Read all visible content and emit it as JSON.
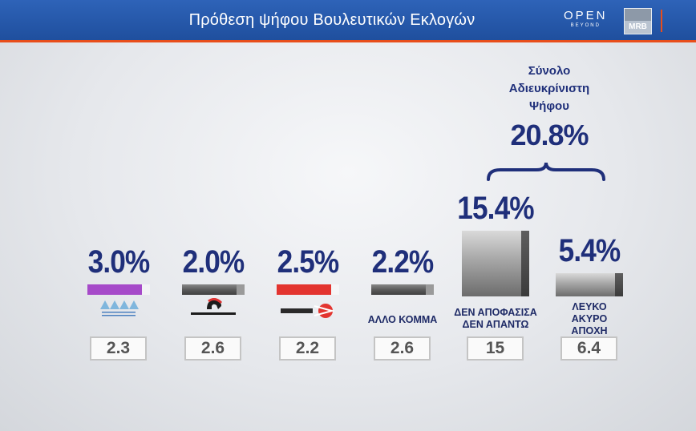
{
  "header": {
    "title": "Πρόθεση ψήφου Βουλευτικών Εκλογών",
    "open_logo": "OPEN",
    "open_sub": "BEYOND",
    "mrb_logo": "MRB"
  },
  "colors": {
    "header_blue": "#2a5cae",
    "accent_orange": "#e84e1b",
    "value_text": "#1f2f7a",
    "plefsi_purple": "#a64ac9",
    "mera25_red": "#e3342f"
  },
  "total": {
    "label_lines": [
      "Σύνολο",
      "Αδιευκρίνιστη",
      "Ψήφου"
    ],
    "value": "20.8%"
  },
  "chart_data": {
    "type": "bar",
    "categories": [
      "ΠΛΕΥΣΗ ΕΛΕΥΘΕΡΙΑΣ",
      "ΣΠΑΡΤΙΑΤΕΣ",
      "ΜέΡΑ25",
      "ΑΛΛΟ ΚΟΜΜΑ",
      "ΔΕΝ ΑΠΟΦΑΣΙΣΑ ΔΕΝ ΑΠΑΝΤΩ",
      "ΛΕΥΚΟ ΑΚΥΡΟ ΑΠΟΧΗ"
    ],
    "category_label_lines": [
      [],
      [],
      [],
      [
        "ΑΛΛΟ ΚΟΜΜΑ"
      ],
      [
        "ΔΕΝ ΑΠΟΦΑΣΙΣΑ",
        "ΔΕΝ ΑΠΑΝΤΩ"
      ],
      [
        "ΛΕΥΚΟ",
        "ΑΚΥΡΟ",
        "ΑΠΟΧΗ"
      ]
    ],
    "values": [
      3.0,
      2.0,
      2.5,
      2.2,
      15.4,
      5.4
    ],
    "value_labels": [
      "3.0%",
      "2.0%",
      "2.5%",
      "2.2%",
      "15.4%",
      "5.4%"
    ],
    "previous_values": [
      "2.3",
      "2.6",
      "2.2",
      "2.6",
      "15",
      "6.4"
    ],
    "bar_colors": [
      "#a64ac9",
      "#6a6a6a",
      "#e3342f",
      "#6a6a6a",
      "#8a8a8a",
      "#8a8a8a"
    ],
    "party_logos": [
      {
        "name": "plefsi-eleftherias-logo",
        "text": "ΠΛΕΥΣΗ ΕΛΕΥΘΕΡΙΑΣ"
      },
      {
        "name": "spartiates-logo",
        "text": "ΣΠΑΡΤΙΑΤΕΣ"
      },
      {
        "name": "mera25-logo",
        "text": "ΜέΡΑ25"
      }
    ],
    "title": "Πρόθεση ψήφου Βουλευτικών Εκλογών",
    "legend": "none",
    "grid": false
  }
}
